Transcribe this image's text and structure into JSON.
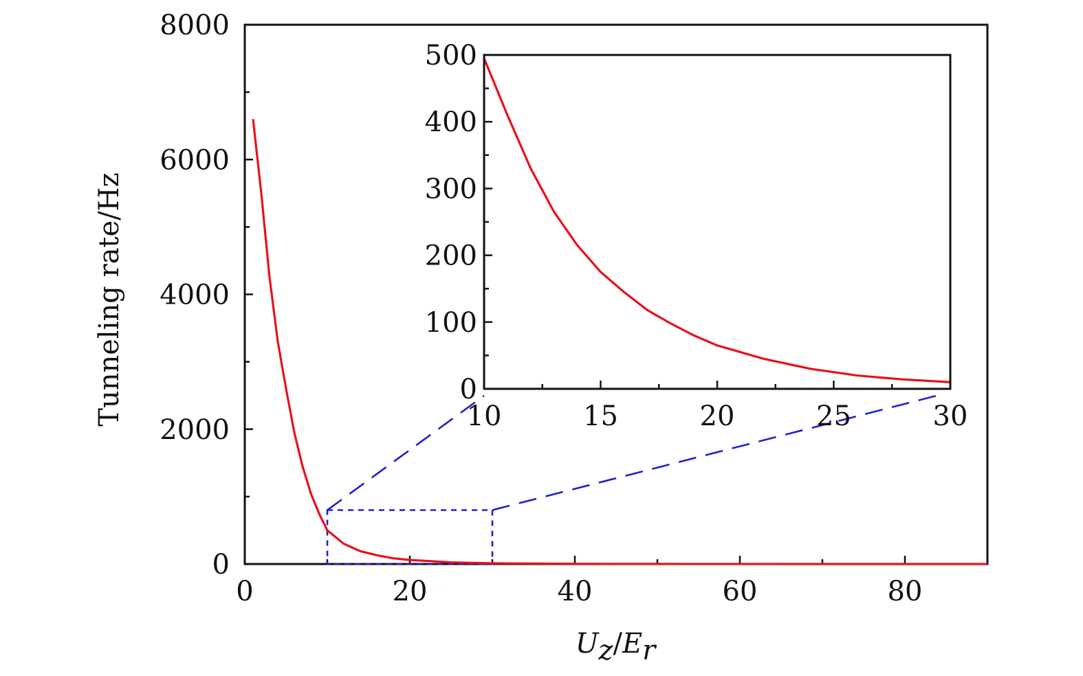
{
  "chart_data": [
    {
      "type": "line",
      "role": "main",
      "xlabel_main": "U",
      "xlabel_sub1": "z",
      "xlabel_sep": "/",
      "xlabel_main2": "E",
      "xlabel_sub2": "r",
      "ylabel": "Tunneling rate/Hz",
      "xlim": [
        0,
        90
      ],
      "ylim": [
        0,
        8000
      ],
      "xticks": [
        0,
        20,
        40,
        60,
        80
      ],
      "yticks": [
        0,
        2000,
        4000,
        6000,
        8000
      ],
      "x_minor_step": 10,
      "y_minor_step": 1000,
      "series": [
        {
          "color": "#e8101a",
          "x": [
            1,
            2,
            3,
            4,
            5,
            6,
            7,
            8,
            9,
            10,
            12,
            14,
            16,
            18,
            20,
            25,
            30,
            40,
            50,
            60,
            70,
            80,
            90
          ],
          "y": [
            6600,
            5500,
            4250,
            3300,
            2600,
            1950,
            1450,
            1050,
            750,
            500,
            300,
            190,
            130,
            85,
            60,
            25,
            10,
            3,
            1,
            0.5,
            0.2,
            0.1,
            0
          ]
        }
      ],
      "zoom_region": {
        "x": [
          10,
          30
        ],
        "y": [
          0,
          800
        ],
        "color": "#1f1fd0"
      }
    },
    {
      "type": "line",
      "role": "inset",
      "xlim": [
        10,
        30
      ],
      "ylim": [
        0,
        500
      ],
      "xticks": [
        10,
        15,
        20,
        25,
        30
      ],
      "yticks": [
        0,
        100,
        200,
        300,
        400,
        500
      ],
      "x_minor_step": 2.5,
      "y_minor_step": 50,
      "series": [
        {
          "color": "#e8101a",
          "x": [
            10,
            11,
            12,
            13,
            14,
            15,
            16,
            17,
            18,
            19,
            20,
            22,
            24,
            26,
            28,
            30
          ],
          "y": [
            495,
            410,
            330,
            265,
            215,
            175,
            145,
            118,
            98,
            80,
            65,
            45,
            30,
            20,
            14,
            10
          ]
        }
      ]
    }
  ]
}
